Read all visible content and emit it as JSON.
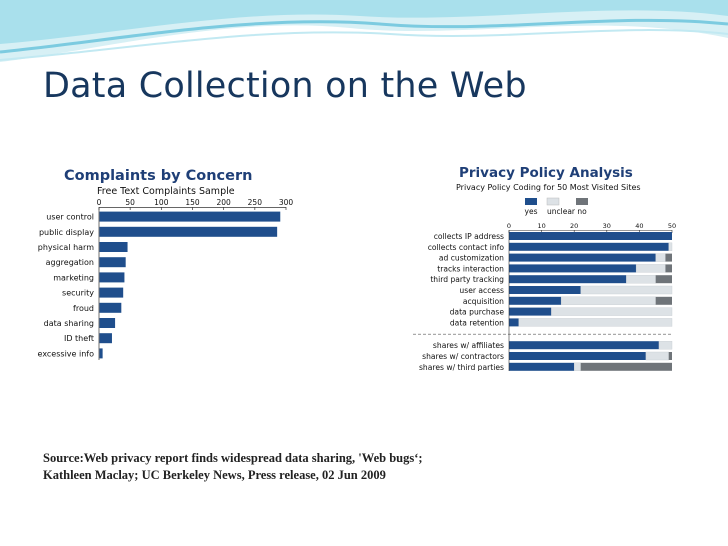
{
  "slide": {
    "title": "Data Collection on the Web",
    "source_line1": "Source:Web privacy report finds widespread data sharing, 'Web bugs‘;",
    "source_line2": "Kathleen Maclay; UC Berkeley News, Press release, 02 Jun 2009"
  },
  "colors": {
    "title": "#17375e",
    "bar_blue": "#1f4e8c",
    "unclear": "#dde2e6",
    "no": "#6f7479",
    "wave_light": "#d7f0f5",
    "wave_mid": "#8fd3e4"
  },
  "chart_data": [
    {
      "type": "bar",
      "orientation": "horizontal",
      "title": "Complaints by Concern",
      "subtitle": "Free Text Complaints Sample",
      "xlim": [
        0,
        300
      ],
      "xticks": [
        0,
        50,
        100,
        150,
        200,
        250,
        300
      ],
      "categories": [
        "user control",
        "public display",
        "physical harm",
        "aggregation",
        "marketing",
        "security",
        "froud",
        "data sharing",
        "ID theft",
        "excessive info"
      ],
      "values": [
        290,
        285,
        45,
        42,
        40,
        38,
        35,
        25,
        20,
        5
      ]
    },
    {
      "type": "bar",
      "orientation": "horizontal",
      "stacked": true,
      "title": "Privacy Policy Analysis",
      "subtitle": "Privacy Policy Coding for 50 Most Visited Sites",
      "xlim": [
        0,
        50
      ],
      "xticks": [
        0,
        10,
        20,
        30,
        40,
        50
      ],
      "legend_position": "top-right",
      "series_names": [
        "yes",
        "unclear",
        "no"
      ],
      "categories": [
        "collects IP address",
        "collects contact info",
        "ad customization",
        "tracks interaction",
        "third party tracking",
        "user access",
        "acquisition",
        "data purchase",
        "data retention",
        "shares w/ affiliates",
        "shares w/ contractors",
        "shares w/ third parties"
      ],
      "series": [
        {
          "name": "yes",
          "values": [
            50,
            49,
            45,
            39,
            36,
            22,
            16,
            13,
            3,
            46,
            42,
            20
          ]
        },
        {
          "name": "unclear",
          "values": [
            0,
            1,
            3,
            9,
            9,
            28,
            29,
            37,
            47,
            4,
            7,
            2
          ]
        },
        {
          "name": "no",
          "values": [
            0,
            0,
            2,
            2,
            5,
            0,
            5,
            0,
            0,
            0,
            1,
            28
          ]
        }
      ]
    }
  ]
}
